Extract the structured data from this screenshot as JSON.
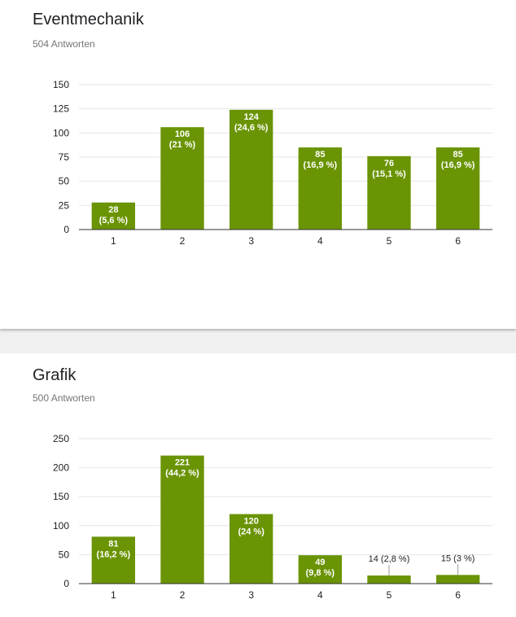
{
  "colors": {
    "bar": "#6a9404",
    "bar_label_inside": "#ffffff",
    "bar_label_outside": "#222222",
    "grid": "#e6e6e6",
    "axis": "#333333",
    "background": "#ffffff"
  },
  "questions": [
    {
      "title": "Eventmechanik",
      "responses": "504 Antworten"
    },
    {
      "title": "Grafik",
      "responses": "500 Antworten"
    }
  ],
  "chart_data": [
    {
      "type": "bar",
      "title": "Eventmechanik",
      "categories": [
        "1",
        "2",
        "3",
        "4",
        "5",
        "6"
      ],
      "values": [
        28,
        106,
        124,
        85,
        76,
        85
      ],
      "value_labels": [
        "28",
        "106",
        "124",
        "85",
        "76",
        "85"
      ],
      "percent_labels": [
        "(5,6 %)",
        "(21 %)",
        "(24,6 %)",
        "(16,9 %)",
        "(15,1 %)",
        "(16,9 %)"
      ],
      "yticks": [
        0,
        25,
        50,
        75,
        100,
        125,
        150
      ],
      "ylim": [
        0,
        150
      ],
      "grid": true,
      "legend": "none"
    },
    {
      "type": "bar",
      "title": "Grafik",
      "categories": [
        "1",
        "2",
        "3",
        "4",
        "5",
        "6"
      ],
      "values": [
        81,
        221,
        120,
        49,
        14,
        15
      ],
      "value_labels": [
        "81",
        "221",
        "120",
        "49",
        "14",
        "15"
      ],
      "percent_labels": [
        "(16,2 %)",
        "(44,2 %)",
        "(24 %)",
        "(9,8 %)",
        "(2,8 %)",
        "(3 %)"
      ],
      "yticks": [
        0,
        50,
        100,
        150,
        200,
        250
      ],
      "ylim": [
        0,
        250
      ],
      "grid": true,
      "legend": "none"
    }
  ]
}
